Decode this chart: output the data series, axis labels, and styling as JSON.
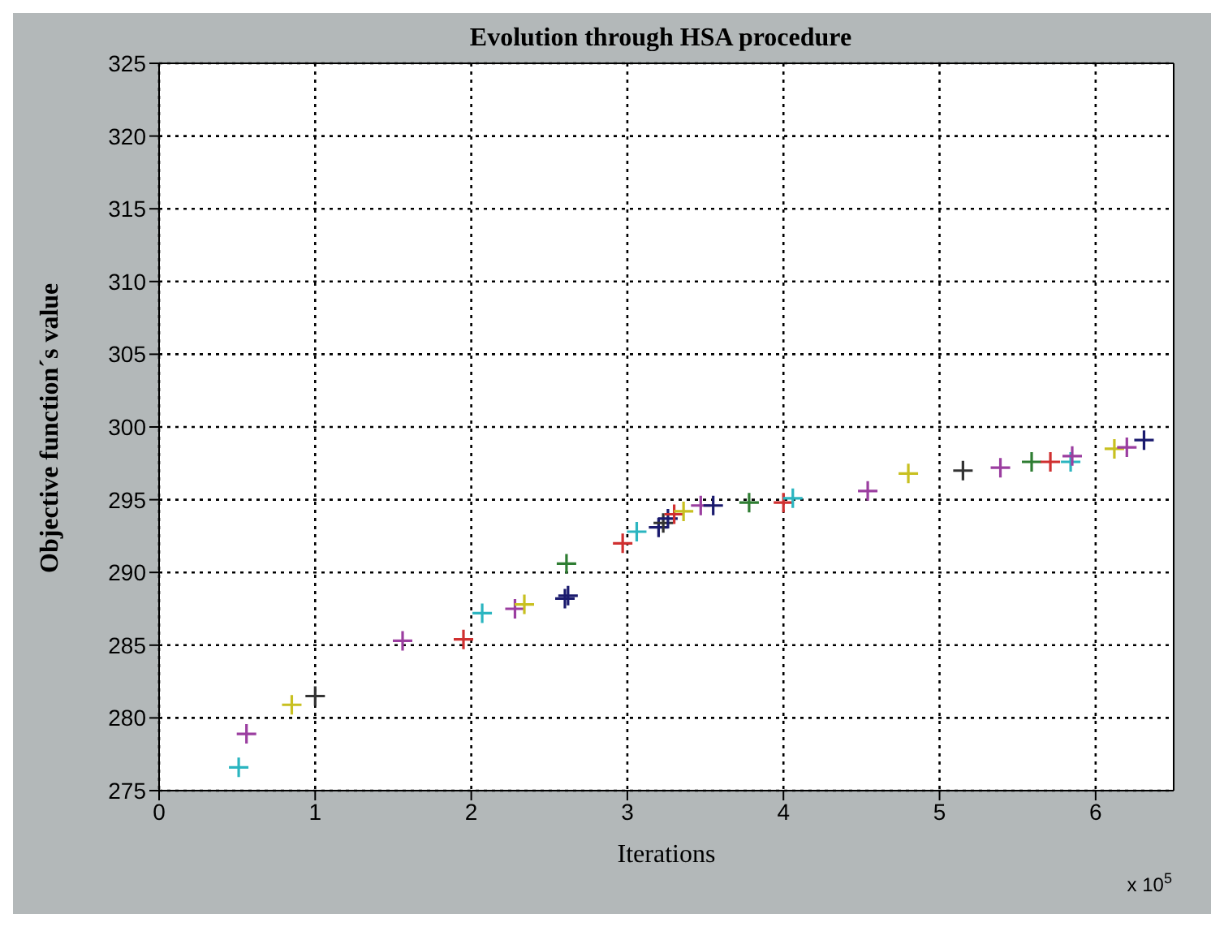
{
  "chart_data": {
    "type": "scatter",
    "title": "Evolution through HSA procedure",
    "xlabel": "Iterations",
    "ylabel": "Objective function´s value",
    "annotations": [
      "x 10$^{5}$"
    ],
    "x": [
      0.51,
      0.56,
      0.85,
      1.0,
      1.56,
      1.95,
      2.07,
      2.28,
      2.34,
      2.6,
      2.62,
      2.61,
      2.97,
      3.06,
      3.2,
      3.23,
      3.26,
      3.3,
      3.36,
      3.47,
      3.55,
      3.78,
      4.0,
      4.06,
      4.54,
      4.8,
      5.15,
      5.39,
      5.59,
      5.71,
      5.84,
      5.85,
      6.12,
      6.2,
      6.31
    ],
    "values": [
      276.6,
      278.9,
      280.9,
      281.5,
      285.3,
      285.4,
      287.2,
      287.5,
      287.8,
      288.2,
      288.4,
      290.6,
      292.0,
      292.8,
      293.1,
      293.4,
      293.7,
      294.0,
      294.2,
      294.6,
      294.6,
      294.8,
      294.8,
      295.1,
      295.6,
      296.8,
      297.0,
      297.2,
      297.6,
      297.6,
      297.6,
      298.0,
      298.5,
      298.6,
      299.1
    ],
    "colors": [
      "#2bb5c0",
      "#9b3ea0",
      "#c8c020",
      "#333333",
      "#9b3ea0",
      "#d03030",
      "#2bb5c0",
      "#9b3ea0",
      "#c8c020",
      "#1a1a6e",
      "#1a1a6e",
      "#2e7d32",
      "#d03030",
      "#2bb5c0",
      "#1a1a6e",
      "#333333",
      "#1a1a6e",
      "#d03030",
      "#c8c020",
      "#9b3ea0",
      "#1a1a6e",
      "#2e7d32",
      "#d03030",
      "#2bb5c0",
      "#9b3ea0",
      "#c8c020",
      "#333333",
      "#9b3ea0",
      "#2e7d32",
      "#d03030",
      "#2bb5c0",
      "#9b3ea0",
      "#c8c020",
      "#9b3ea0",
      "#1a1a6e"
    ],
    "xlim": [
      0,
      6.5
    ],
    "xticks": [
      0,
      1,
      2,
      3,
      4,
      5,
      6
    ],
    "ylim": [
      275,
      325
    ],
    "yticks": [
      275,
      280,
      285,
      290,
      295,
      300,
      305,
      310,
      315,
      320,
      325
    ],
    "grid": true,
    "marker": "cross",
    "line_style": "dotted"
  }
}
